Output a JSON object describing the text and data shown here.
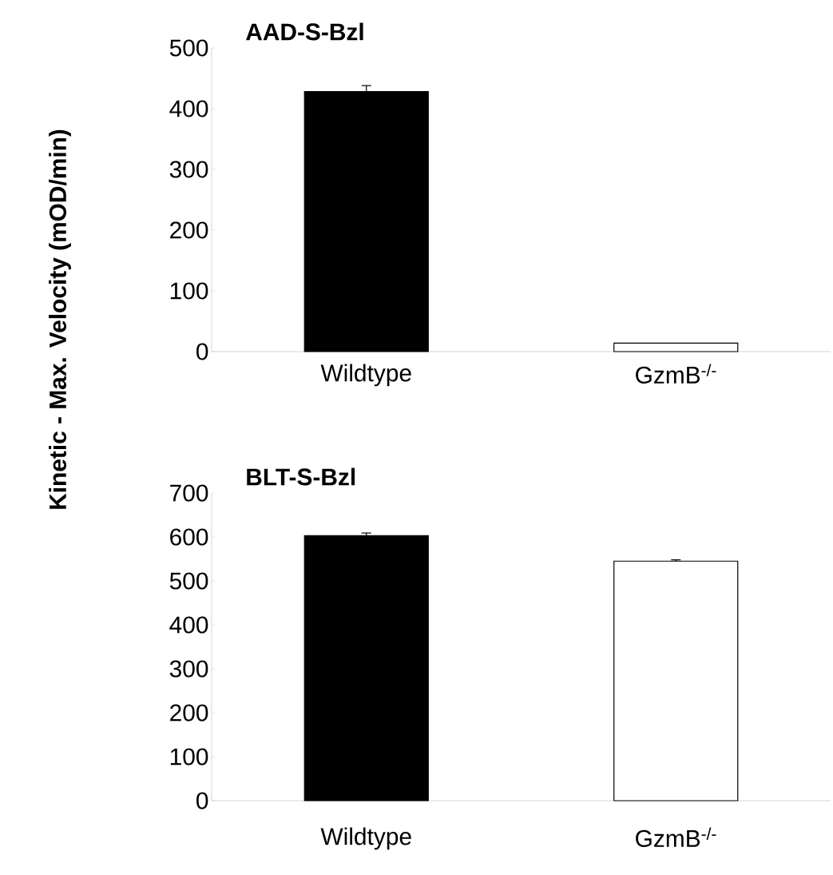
{
  "chart_data": [
    {
      "type": "bar",
      "title": "**AAD-S-Bzl**",
      "ylabel": "**Kinetic - Max. Velocity (mOD/min)**",
      "categories": [
        "Wildtype",
        "GzmB$^{-/-}$"
      ],
      "values": [
        428,
        14
      ],
      "errors": [
        10,
        null
      ],
      "colors": [
        "#000000",
        "#ffffff"
      ],
      "ylim": [
        0,
        500
      ],
      "yticks": [
        0,
        100,
        200,
        300,
        400,
        500
      ]
    },
    {
      "type": "bar",
      "title": "**BLT-S-Bzl**",
      "categories": [
        "Wildtype",
        "GzmB$^{-/-}$"
      ],
      "values": [
        603,
        545
      ],
      "errors": [
        6,
        3
      ],
      "colors": [
        "#000000",
        "#ffffff"
      ],
      "ylim": [
        0,
        700
      ],
      "yticks": [
        0,
        100,
        200,
        300,
        400,
        500,
        600,
        700
      ]
    }
  ]
}
